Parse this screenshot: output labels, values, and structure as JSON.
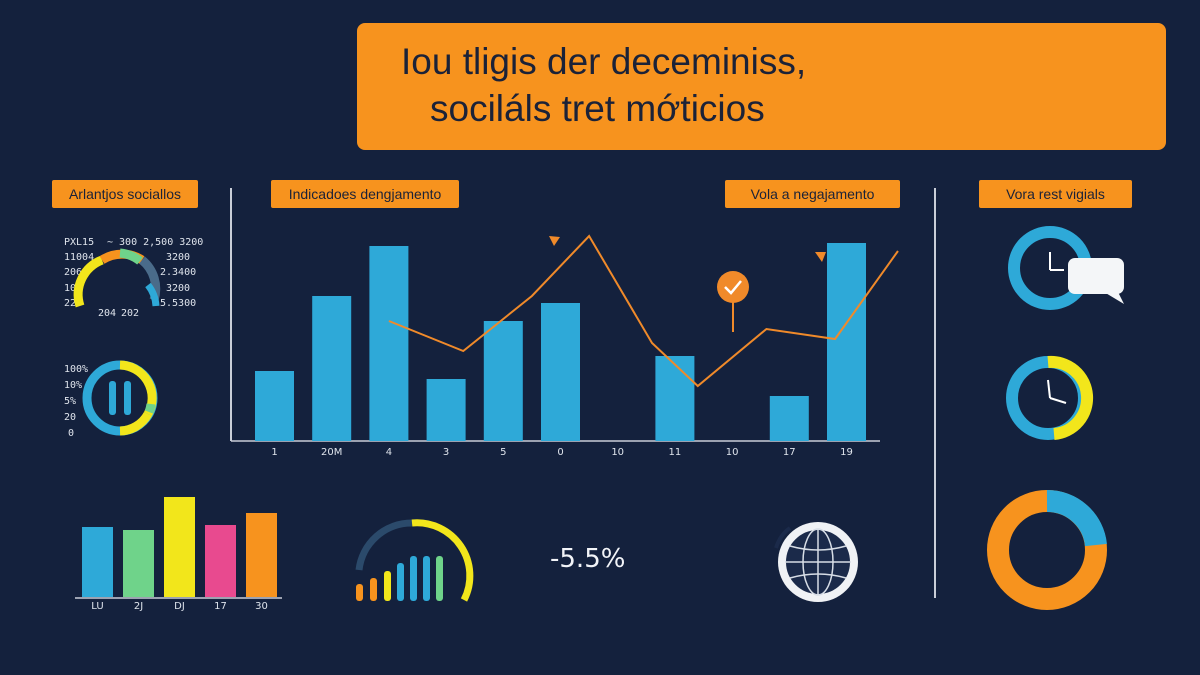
{
  "banner": {
    "line1": "Iou tligis der deceminiss,",
    "line2": "sociláls tret mớticios"
  },
  "tags": {
    "left": "Arlantjos sociallos",
    "center": "Indicadoes dengjamento",
    "center_right": "Vola a negajamento",
    "right": "Vora rest vigials"
  },
  "gauge_panel": {
    "left_labels": [
      "PXL15",
      "11004",
      "206",
      "10",
      "22"
    ],
    "right_labels": [
      "~ 300 2,500 3200",
      "3200",
      "2.3400",
      "3200",
      "5.5300"
    ],
    "bottom_labels": [
      "204",
      "202"
    ]
  },
  "donut_panel": {
    "labels": [
      "100%",
      "10%",
      "5%",
      "20",
      "0"
    ]
  },
  "main_chart": {
    "x_labels": [
      "1",
      "20M",
      "4",
      "3",
      "5",
      "0",
      "10",
      "11",
      "10",
      "17",
      "19"
    ]
  },
  "mini_bar": {
    "x_labels": [
      "LU",
      "2J",
      "DJ",
      "17",
      "30"
    ]
  },
  "kpi": {
    "value": "-5.5%"
  },
  "colors": {
    "background": "#14213d",
    "accent_orange": "#f7931e",
    "bar_blue": "#2ea9d8",
    "line_orange": "#f08a2a",
    "yellow": "#f2e61b",
    "green": "#6fd38a",
    "pink": "#e84a8f"
  },
  "chart_data": [
    {
      "type": "bar",
      "categories": [
        "1",
        "20M",
        "4",
        "3",
        "5",
        "0",
        "10",
        "11",
        "10",
        "17",
        "19"
      ],
      "series": [
        {
          "values": [
            70,
            145,
            195,
            62,
            120,
            138,
            0,
            85,
            0,
            45,
            198
          ]
        }
      ],
      "overlay_line": [
        {
          "x": 2,
          "y": 120
        },
        {
          "x": 3.3,
          "y": 90
        },
        {
          "x": 4.5,
          "y": 145
        },
        {
          "x": 5.5,
          "y": 205
        },
        {
          "x": 6.6,
          "y": 98
        },
        {
          "x": 7.4,
          "y": 55
        },
        {
          "x": 8.6,
          "y": 112
        },
        {
          "x": 9.8,
          "y": 102
        },
        {
          "x": 10.9,
          "y": 190
        }
      ]
    },
    {
      "type": "bar",
      "categories": [
        "LU",
        "2J",
        "DJ",
        "17",
        "30"
      ],
      "values": [
        70,
        67,
        100,
        72,
        84
      ]
    }
  ]
}
